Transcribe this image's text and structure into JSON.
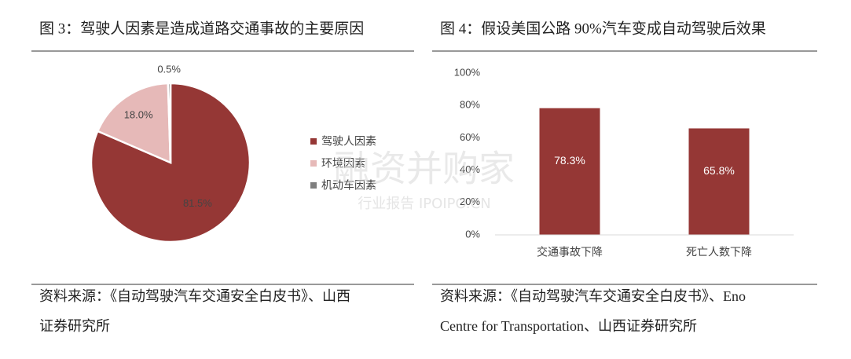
{
  "chart_data": [
    {
      "type": "pie",
      "title": "图 3：驾驶人因素是造成道路交通事故的主要原因",
      "categories": [
        "驾驶人因素",
        "环境因素",
        "机动车因素"
      ],
      "values": [
        81.5,
        18.0,
        0.5
      ],
      "value_labels": [
        "81.5%",
        "18.0%",
        "0.5%"
      ],
      "colors": [
        "#953735",
        "#e6b9b8",
        "#7f7f7f"
      ],
      "source": [
        "资料来源：《自动驾驶汽车交通安全白皮书》、山西",
        "证券研究所"
      ]
    },
    {
      "type": "bar",
      "title": "图 4：假设美国公路 90%汽车变成自动驾驶后效果",
      "categories": [
        "交通事故下降",
        "死亡人数下降"
      ],
      "values": [
        78.3,
        65.8
      ],
      "value_labels": [
        "78.3%",
        "65.8%"
      ],
      "color": "#953735",
      "ylim": [
        0,
        100
      ],
      "yticks": [
        {
          "value": 0,
          "label": "0%"
        },
        {
          "value": 20,
          "label": "20%"
        },
        {
          "value": 40,
          "label": "40%"
        },
        {
          "value": 60,
          "label": "60%"
        },
        {
          "value": 80,
          "label": "80%"
        },
        {
          "value": 100,
          "label": "100%"
        }
      ],
      "grid": false,
      "source": [
        "资料来源：《自动驾驶汽车交通安全白皮书》、Eno",
        "Centre for Transportation、山西证券研究所"
      ]
    }
  ],
  "watermark": {
    "title": "融资并购家",
    "subtitle": "行业报告 IPOIPO.CN"
  }
}
